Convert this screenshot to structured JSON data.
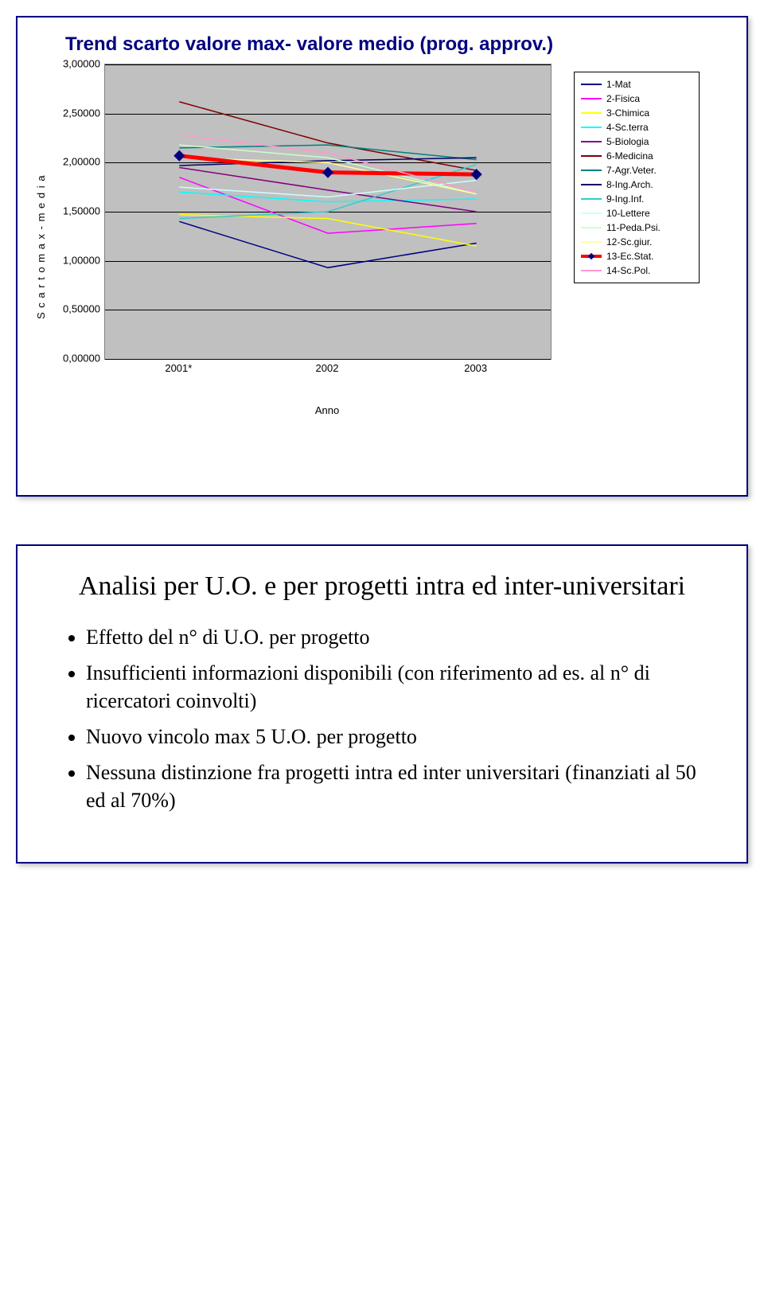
{
  "chart": {
    "title": "Trend scarto valore max- valore medio (prog. approv.)",
    "title_color": "#000080",
    "title_fontsize": 24,
    "ylabel": "S c a r t o   m a x - m e d i a",
    "xlabel": "Anno",
    "background_color": "#c0c0c0",
    "grid_color": "#000000",
    "ylim": [
      0,
      3.0
    ],
    "yticks": [
      "0,00000",
      "0,50000",
      "1,00000",
      "1,50000",
      "2,00000",
      "2,50000",
      "3,00000"
    ],
    "xcategories": [
      "2001*",
      "2002",
      "2003"
    ],
    "series": [
      {
        "name": "1-Mat",
        "color": "#000080",
        "width": 1.5,
        "values": [
          1.4,
          0.93,
          1.18
        ]
      },
      {
        "name": "2-Fisica",
        "color": "#ff00ff",
        "width": 1.5,
        "values": [
          1.85,
          1.28,
          1.38
        ]
      },
      {
        "name": "3-Chimica",
        "color": "#ffff00",
        "width": 1.5,
        "values": [
          1.47,
          1.43,
          1.15
        ]
      },
      {
        "name": "4-Sc.terra",
        "color": "#00ffff",
        "width": 1.5,
        "values": [
          1.7,
          1.6,
          1.63
        ]
      },
      {
        "name": "5-Biologia",
        "color": "#800080",
        "width": 1.5,
        "values": [
          1.95,
          1.72,
          1.5
        ]
      },
      {
        "name": "6-Medicina",
        "color": "#800000",
        "width": 1.5,
        "values": [
          2.62,
          2.2,
          1.92
        ]
      },
      {
        "name": "7-Agr.Veter.",
        "color": "#008080",
        "width": 1.5,
        "values": [
          2.15,
          2.18,
          2.03
        ]
      },
      {
        "name": "8-Ing.Arch.",
        "color": "#000066",
        "width": 1.5,
        "values": [
          1.97,
          2.02,
          2.05
        ]
      },
      {
        "name": "9-Ing.Inf.",
        "color": "#33cccc",
        "width": 1.5,
        "values": [
          1.43,
          1.5,
          1.98
        ]
      },
      {
        "name": "10-Lettere",
        "color": "#ccffff",
        "width": 1.5,
        "values": [
          1.75,
          1.65,
          1.82
        ]
      },
      {
        "name": "11-Peda.Psi.",
        "color": "#ccffcc",
        "width": 1.5,
        "values": [
          2.18,
          2.05,
          1.68
        ]
      },
      {
        "name": "12-Sc.giur.",
        "color": "#ffff99",
        "width": 1.5,
        "values": [
          2.05,
          2.0,
          1.68
        ]
      },
      {
        "name": "13-Ec.Stat.",
        "color": "#ff0000",
        "width": 5,
        "marker": "diamond",
        "marker_color": "#000080",
        "values": [
          2.07,
          1.9,
          1.88
        ]
      },
      {
        "name": "14-Sc.Pol.",
        "color": "#ff99cc",
        "width": 1.5,
        "values": [
          2.28,
          2.1,
          1.7
        ]
      }
    ]
  },
  "text_block": {
    "title": "Analisi per U.O. e per progetti intra ed inter-universitari",
    "title_fontsize": 34,
    "bullets": [
      "Effetto del n° di U.O. per progetto",
      "Insufficienti informazioni disponibili (con riferimento ad es. al n° di ricercatori coinvolti)",
      "Nuovo vincolo max 5 U.O. per progetto",
      "Nessuna distinzione fra progetti intra ed inter universitari (finanziati al 50 ed al 70%)"
    ],
    "body_fontsize": 26,
    "font_family": "Times New Roman"
  },
  "panel_border_color": "#000080"
}
